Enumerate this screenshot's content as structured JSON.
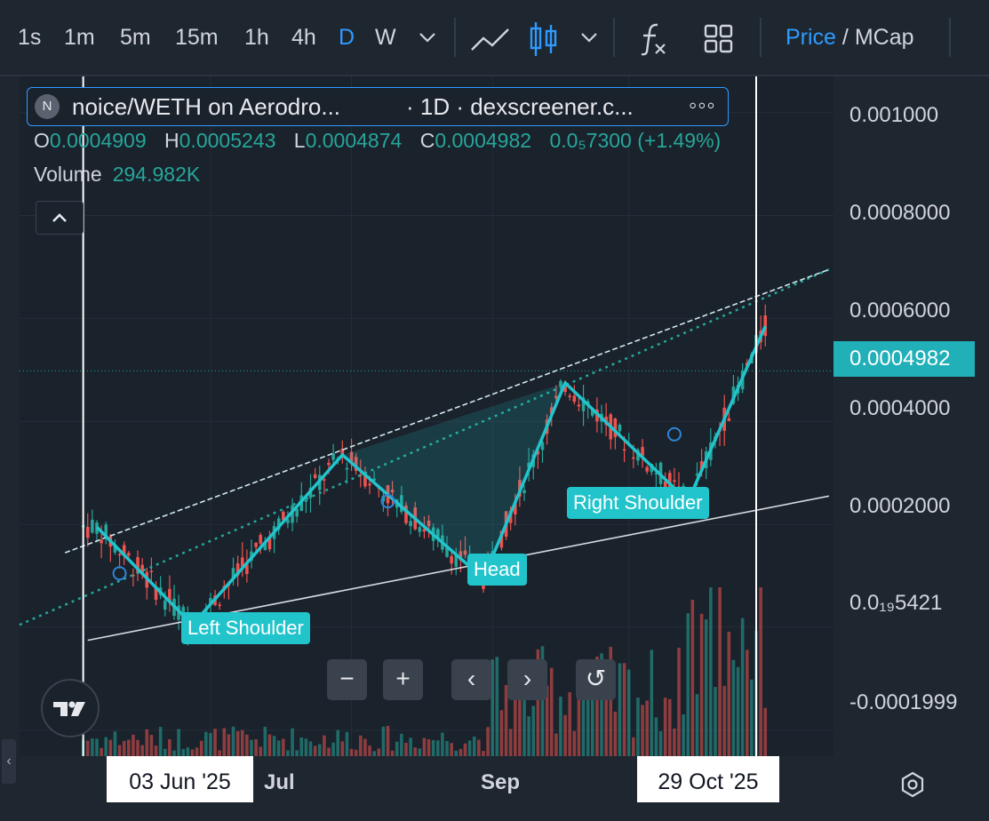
{
  "toolbar": {
    "timeframes": [
      "1s",
      "1m",
      "5m",
      "15m",
      "1h",
      "4h",
      "D",
      "W"
    ],
    "active_timeframe": "D",
    "price_label": "Price",
    "separator": " / ",
    "mcap_label": "MCap",
    "icons": [
      "chevron-down-icon",
      "line-chart-icon",
      "candlestick-icon",
      "chevron-down-icon",
      "function-icon",
      "layout-grid-icon"
    ]
  },
  "legend": {
    "badge": "N",
    "title": "noice/WETH on Aerodro...",
    "interval": "· 1D · dexscreener.c...",
    "more": "◦◦◦",
    "ohlc": {
      "o_key": "O",
      "o": "0.0004909",
      "h_key": "H",
      "h": "0.0005243",
      "l_key": "L",
      "l": "0.0004874",
      "c_key": "C",
      "c": "0.0004982",
      "change": "0.0₅7300 (+1.49%)"
    },
    "volume_label": "Volume",
    "volume_value": "294.982K"
  },
  "price_axis": {
    "labels": [
      "0.001000",
      "0.0008000",
      "0.0006000",
      "0.0004000",
      "0.0002000",
      "0.0₁₉5421",
      "-0.0001999"
    ],
    "current_price": "0.0004982"
  },
  "time_axis": {
    "start_date": "03 Jun '25",
    "end_date": "29 Oct '25",
    "months": [
      "Jul",
      "Sep"
    ]
  },
  "annotations": {
    "left_shoulder": "Left Shoulder",
    "head": "Head",
    "right_shoulder": "Right Shoulder"
  },
  "controls": {
    "zoom_out": "−",
    "zoom_in": "+",
    "scroll_left": "‹",
    "scroll_right": "›",
    "reset": "↺",
    "side_tab": "‹"
  },
  "colors": {
    "background": "#1a222c",
    "up": "#26a69a",
    "down": "#ef5350",
    "pattern": "#22c4cc",
    "accent": "#2f9bff"
  },
  "chart_data": {
    "type": "candlestick",
    "x_range": [
      "2025-05-20",
      "2025-11-15"
    ],
    "y_range": [
      -0.00025,
      0.00107
    ],
    "date_range_start": "2025-06-03",
    "date_range_end": "2025-10-29",
    "last": {
      "open": 0.0004909,
      "high": 0.0005243,
      "low": 0.0004874,
      "close": 0.0004982,
      "change_pct": 1.49
    },
    "pattern_points": [
      {
        "date": "2025-06-06",
        "price": 0.000195
      },
      {
        "date": "2025-06-27",
        "price": 5e-06
      },
      {
        "date": "2025-07-30",
        "price": 0.000335
      },
      {
        "date": "2025-08-30",
        "price": 9.5e-05
      },
      {
        "date": "2025-09-17",
        "price": 0.000475
      },
      {
        "date": "2025-10-14",
        "price": 0.000245
      },
      {
        "date": "2025-10-31",
        "price": 0.000585
      }
    ],
    "upper_trendline": [
      {
        "date": "2025-05-30",
        "price": 0.000145
      },
      {
        "date": "2025-11-14",
        "price": 0.000695
      }
    ],
    "extended_trendline": [
      {
        "date": "2025-05-20",
        "price": 5e-06
      },
      {
        "date": "2025-11-14",
        "price": 0.000695
      }
    ],
    "lower_trendline": [
      {
        "date": "2025-06-04",
        "price": -2.5e-05
      },
      {
        "date": "2025-11-14",
        "price": 0.000255
      }
    ],
    "markers": [
      {
        "date": "2025-06-11",
        "price": 0.000105
      },
      {
        "date": "2025-08-09",
        "price": 0.000245
      },
      {
        "date": "2025-10-11",
        "price": 0.000375
      }
    ],
    "volume_max": 1
  }
}
